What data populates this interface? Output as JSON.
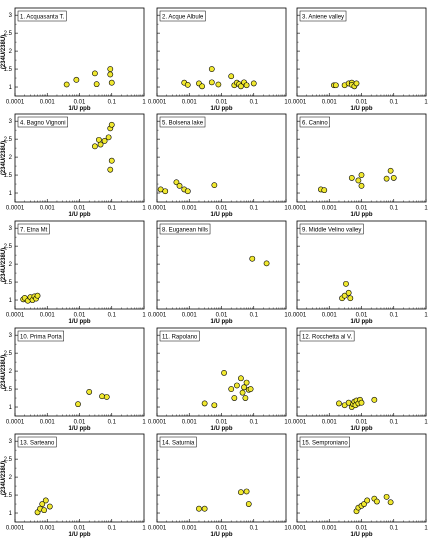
{
  "figure": {
    "xlabel": "1/U ppb",
    "ylabel": "(234U/238U)",
    "x_ticks": [
      "0.0001",
      "0.001",
      "0.01",
      "0.1",
      "1"
    ],
    "y_ticks": [
      "1",
      "1.5",
      "2",
      "2.5",
      "3"
    ],
    "marker_fill": "#f0e830",
    "marker_stroke": "#000000"
  },
  "chart_data": [
    {
      "type": "scatter",
      "title": "1. Acquasanta T.",
      "x_scale": "log",
      "xlim": [
        0.0001,
        1
      ],
      "ylim": [
        0.75,
        3.2
      ],
      "points": [
        [
          0.004,
          1.07
        ],
        [
          0.008,
          1.2
        ],
        [
          0.03,
          1.38
        ],
        [
          0.034,
          1.08
        ],
        [
          0.09,
          1.5
        ],
        [
          0.09,
          1.35
        ],
        [
          0.1,
          1.12
        ]
      ]
    },
    {
      "type": "scatter",
      "title": "2. Acque Albule",
      "x_scale": "log",
      "xlim": [
        0.0001,
        1
      ],
      "ylim": [
        0.75,
        3.2
      ],
      "points": [
        [
          0.0007,
          1.12
        ],
        [
          0.0009,
          1.06
        ],
        [
          0.002,
          1.1
        ],
        [
          0.0025,
          1.02
        ],
        [
          0.005,
          1.5
        ],
        [
          0.005,
          1.13
        ],
        [
          0.008,
          1.07
        ],
        [
          0.02,
          1.3
        ],
        [
          0.025,
          1.05
        ],
        [
          0.03,
          1.12
        ],
        [
          0.035,
          1.08
        ],
        [
          0.04,
          1.02
        ],
        [
          0.05,
          1.13
        ],
        [
          0.06,
          1.05
        ],
        [
          0.1,
          1.1
        ]
      ]
    },
    {
      "type": "scatter",
      "title": "3. Aniene valley",
      "x_scale": "log",
      "xlim": [
        0.0001,
        1
      ],
      "ylim": [
        0.75,
        3.2
      ],
      "points": [
        [
          0.0014,
          1.05
        ],
        [
          0.0016,
          1.05
        ],
        [
          0.003,
          1.05
        ],
        [
          0.004,
          1.1
        ],
        [
          0.005,
          1.12
        ],
        [
          0.005,
          1.06
        ],
        [
          0.006,
          1.02
        ],
        [
          0.007,
          1.1
        ]
      ]
    },
    {
      "type": "scatter",
      "title": "4. Bagno Vignoni",
      "x_scale": "log",
      "xlim": [
        0.0001,
        1
      ],
      "ylim": [
        0.75,
        3.2
      ],
      "points": [
        [
          0.03,
          2.3
        ],
        [
          0.04,
          2.48
        ],
        [
          0.045,
          2.35
        ],
        [
          0.06,
          2.45
        ],
        [
          0.08,
          2.55
        ],
        [
          0.09,
          2.8
        ],
        [
          0.1,
          2.9
        ],
        [
          0.09,
          1.65
        ],
        [
          0.1,
          1.9
        ]
      ]
    },
    {
      "type": "scatter",
      "title": "5. Bolsena lake",
      "x_scale": "log",
      "xlim": [
        0.0001,
        1
      ],
      "ylim": [
        0.75,
        3.2
      ],
      "points": [
        [
          0.00013,
          1.1
        ],
        [
          0.00018,
          1.05
        ],
        [
          0.0004,
          1.3
        ],
        [
          0.0005,
          1.2
        ],
        [
          0.0007,
          1.1
        ],
        [
          0.0009,
          1.05
        ],
        [
          0.006,
          1.22
        ]
      ]
    },
    {
      "type": "scatter",
      "title": "6. Canino",
      "x_scale": "log",
      "xlim": [
        0.0001,
        1
      ],
      "ylim": [
        0.75,
        3.2
      ],
      "points": [
        [
          0.00055,
          1.1
        ],
        [
          0.0007,
          1.08
        ],
        [
          0.005,
          1.42
        ],
        [
          0.008,
          1.35
        ],
        [
          0.01,
          1.5
        ],
        [
          0.01,
          1.2
        ],
        [
          0.06,
          1.4
        ],
        [
          0.08,
          1.62
        ],
        [
          0.1,
          1.42
        ]
      ]
    },
    {
      "type": "scatter",
      "title": "7. Etna Mt",
      "x_scale": "log",
      "xlim": [
        0.0001,
        1
      ],
      "ylim": [
        0.75,
        3.2
      ],
      "points": [
        [
          0.00018,
          1.02
        ],
        [
          0.0002,
          1.06
        ],
        [
          0.00025,
          0.98
        ],
        [
          0.0003,
          1.08
        ],
        [
          0.00035,
          1.0
        ],
        [
          0.0004,
          1.1
        ],
        [
          0.00045,
          1.04
        ],
        [
          0.0005,
          1.12
        ]
      ]
    },
    {
      "type": "scatter",
      "title": "8. Euganean hills",
      "x_scale": "log",
      "xlim": [
        0.0001,
        1
      ],
      "ylim": [
        0.75,
        3.2
      ],
      "points": [
        [
          0.09,
          2.15
        ],
        [
          0.25,
          2.02
        ]
      ]
    },
    {
      "type": "scatter",
      "title": "9. Middle Velino valley",
      "x_scale": "log",
      "xlim": [
        0.0001,
        1
      ],
      "ylim": [
        0.75,
        3.2
      ],
      "points": [
        [
          0.0025,
          1.05
        ],
        [
          0.003,
          1.12
        ],
        [
          0.0033,
          1.45
        ],
        [
          0.004,
          1.2
        ],
        [
          0.0045,
          1.05
        ]
      ]
    },
    {
      "type": "scatter",
      "title": "10. Prima Porta",
      "x_scale": "log",
      "xlim": [
        0.0001,
        1
      ],
      "ylim": [
        0.75,
        3.2
      ],
      "points": [
        [
          0.009,
          1.08
        ],
        [
          0.02,
          1.42
        ],
        [
          0.05,
          1.3
        ],
        [
          0.07,
          1.28
        ]
      ]
    },
    {
      "type": "scatter",
      "title": "11. Rapolano",
      "x_scale": "log",
      "xlim": [
        0.0001,
        1
      ],
      "ylim": [
        0.75,
        3.2
      ],
      "points": [
        [
          0.003,
          1.1
        ],
        [
          0.006,
          1.05
        ],
        [
          0.012,
          1.95
        ],
        [
          0.02,
          1.5
        ],
        [
          0.025,
          1.25
        ],
        [
          0.03,
          1.6
        ],
        [
          0.04,
          1.8
        ],
        [
          0.045,
          1.4
        ],
        [
          0.05,
          1.55
        ],
        [
          0.055,
          1.25
        ],
        [
          0.06,
          1.68
        ],
        [
          0.07,
          1.48
        ],
        [
          0.08,
          1.5
        ]
      ]
    },
    {
      "type": "scatter",
      "title": "12. Rocchetta al V.",
      "x_scale": "log",
      "xlim": [
        0.0001,
        1
      ],
      "ylim": [
        0.75,
        3.2
      ],
      "points": [
        [
          0.002,
          1.1
        ],
        [
          0.003,
          1.05
        ],
        [
          0.004,
          1.12
        ],
        [
          0.005,
          1.0
        ],
        [
          0.0055,
          1.08
        ],
        [
          0.006,
          1.15
        ],
        [
          0.0065,
          1.05
        ],
        [
          0.007,
          1.18
        ],
        [
          0.008,
          1.1
        ],
        [
          0.009,
          1.2
        ],
        [
          0.01,
          1.12
        ],
        [
          0.025,
          1.2
        ]
      ]
    },
    {
      "type": "scatter",
      "title": "13. Sarteano",
      "x_scale": "log",
      "xlim": [
        0.0001,
        1
      ],
      "ylim": [
        0.75,
        3.2
      ],
      "points": [
        [
          0.0005,
          1.02
        ],
        [
          0.0006,
          1.12
        ],
        [
          0.0007,
          1.25
        ],
        [
          0.0008,
          1.08
        ],
        [
          0.0009,
          1.35
        ],
        [
          0.0012,
          1.18
        ]
      ]
    },
    {
      "type": "scatter",
      "title": "14. Saturnia",
      "x_scale": "log",
      "xlim": [
        0.0001,
        1
      ],
      "ylim": [
        0.75,
        3.2
      ],
      "points": [
        [
          0.002,
          1.12
        ],
        [
          0.003,
          1.12
        ],
        [
          0.04,
          1.58
        ],
        [
          0.06,
          1.6
        ],
        [
          0.07,
          1.25
        ]
      ]
    },
    {
      "type": "scatter",
      "title": "15. Semproniano",
      "x_scale": "log",
      "xlim": [
        0.0001,
        1
      ],
      "ylim": [
        0.75,
        3.2
      ],
      "points": [
        [
          0.007,
          1.05
        ],
        [
          0.008,
          1.15
        ],
        [
          0.01,
          1.2
        ],
        [
          0.012,
          1.25
        ],
        [
          0.015,
          1.35
        ],
        [
          0.025,
          1.4
        ],
        [
          0.03,
          1.32
        ],
        [
          0.06,
          1.45
        ],
        [
          0.08,
          1.3
        ]
      ]
    }
  ]
}
